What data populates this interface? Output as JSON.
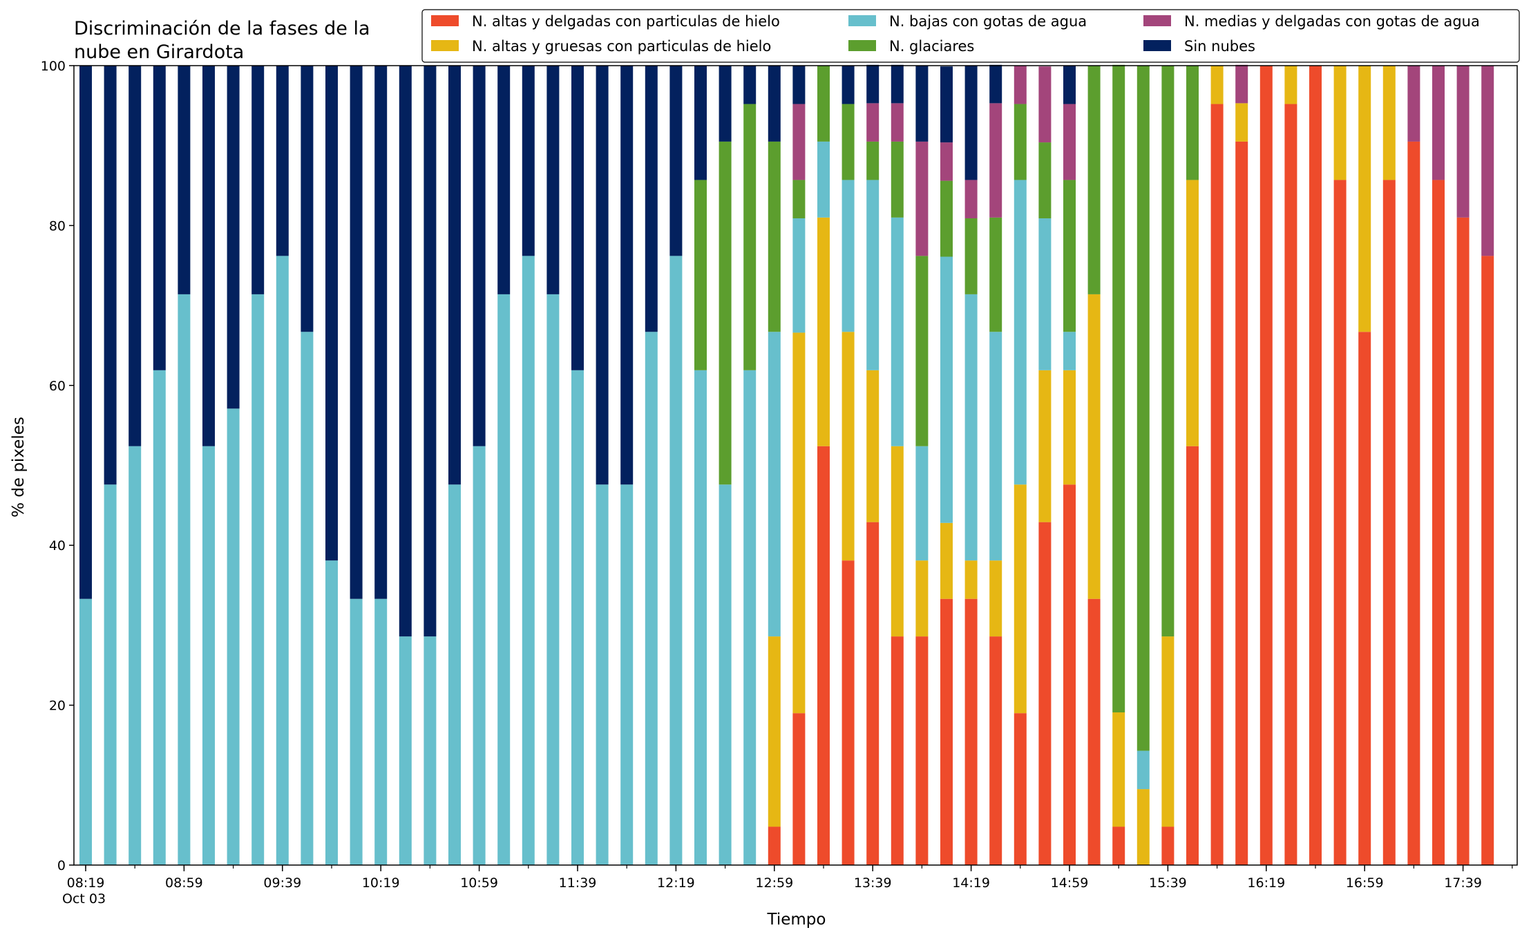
{
  "chart_data": {
    "type": "bar",
    "stacked": true,
    "title_lines": [
      "Discriminación de la fases de la",
      "nube en Girardota"
    ],
    "xlabel": "Tiempo",
    "ylabel": "% de pixeles",
    "ylim": [
      0,
      100
    ],
    "y_ticks": [
      "0",
      "20",
      "40",
      "60",
      "80",
      "100"
    ],
    "x_ticks": [
      {
        "index": 0,
        "lines": [
          "08:19",
          "Oct 03"
        ]
      },
      {
        "index": 4,
        "lines": [
          "08:59"
        ]
      },
      {
        "index": 8,
        "lines": [
          "09:39"
        ]
      },
      {
        "index": 12,
        "lines": [
          "10:19"
        ]
      },
      {
        "index": 16,
        "lines": [
          "10:59"
        ]
      },
      {
        "index": 20,
        "lines": [
          "11:39"
        ]
      },
      {
        "index": 24,
        "lines": [
          "12:19"
        ]
      },
      {
        "index": 28,
        "lines": [
          "12:59"
        ]
      },
      {
        "index": 32,
        "lines": [
          "13:39"
        ]
      },
      {
        "index": 36,
        "lines": [
          "14:19"
        ]
      },
      {
        "index": 40,
        "lines": [
          "14:59"
        ]
      },
      {
        "index": 44,
        "lines": [
          "15:39"
        ]
      },
      {
        "index": 48,
        "lines": [
          "16:19"
        ]
      },
      {
        "index": 52,
        "lines": [
          "16:59"
        ]
      },
      {
        "index": 56,
        "lines": [
          "17:39"
        ]
      }
    ],
    "legend_position": "top-right",
    "grid": false,
    "series": [
      {
        "name": "N. altas y delgadas con particulas de hielo",
        "color": "#ee4b2b",
        "values": [
          0,
          0,
          0,
          0,
          0,
          0,
          0,
          0,
          0,
          0,
          0,
          0,
          0,
          0,
          0,
          0,
          0,
          0,
          0,
          0,
          0,
          0,
          0,
          0,
          0,
          0,
          0,
          0,
          4.8,
          19.0,
          52.4,
          38.1,
          42.9,
          28.6,
          28.6,
          33.3,
          33.3,
          28.6,
          19.0,
          42.9,
          47.6,
          33.3,
          4.8,
          0,
          4.8,
          52.4,
          95.2,
          90.5,
          100,
          95.2,
          100,
          85.7,
          66.7,
          85.7,
          90.5,
          85.7,
          81.0,
          76.2
        ]
      },
      {
        "name": "N. altas y gruesas con particulas de hielo",
        "color": "#e6b714",
        "values": [
          0,
          0,
          0,
          0,
          0,
          0,
          0,
          0,
          0,
          0,
          0,
          0,
          0,
          0,
          0,
          0,
          0,
          0,
          0,
          0,
          0,
          0,
          0,
          0,
          0,
          0,
          0,
          0,
          23.8,
          47.6,
          28.6,
          28.6,
          19.0,
          23.8,
          9.5,
          9.5,
          4.8,
          9.5,
          28.6,
          19.0,
          14.3,
          38.1,
          14.3,
          9.5,
          23.8,
          33.3,
          4.8,
          4.8,
          0,
          4.8,
          0,
          14.3,
          33.3,
          14.3,
          0,
          0,
          0,
          0
        ]
      },
      {
        "name": "N. bajas con gotas de agua",
        "color": "#67bfcc",
        "values": [
          33.3,
          47.6,
          52.4,
          61.9,
          71.4,
          52.4,
          57.1,
          71.4,
          76.2,
          66.7,
          38.1,
          33.3,
          33.3,
          28.6,
          28.6,
          47.6,
          52.4,
          71.4,
          76.2,
          71.4,
          61.9,
          47.6,
          47.6,
          66.7,
          76.2,
          61.9,
          47.6,
          61.9,
          38.1,
          14.3,
          9.5,
          19.0,
          23.8,
          28.6,
          14.3,
          33.3,
          33.3,
          28.6,
          38.1,
          19.0,
          4.8,
          0,
          0,
          4.8,
          0,
          0,
          0,
          0,
          0,
          0,
          0,
          0,
          0,
          0,
          0,
          0,
          0,
          0
        ]
      },
      {
        "name": "N. glaciares",
        "color": "#5c9e2e",
        "values": [
          0,
          0,
          0,
          0,
          0,
          0,
          0,
          0,
          0,
          0,
          0,
          0,
          0,
          0,
          0,
          0,
          0,
          0,
          0,
          0,
          0,
          0,
          0,
          0,
          0,
          23.8,
          42.9,
          33.3,
          23.8,
          4.8,
          9.5,
          9.5,
          4.8,
          9.5,
          23.8,
          9.5,
          9.5,
          14.3,
          9.5,
          9.5,
          19.0,
          28.6,
          81.0,
          85.7,
          71.4,
          14.3,
          0,
          0,
          0,
          0,
          0,
          0,
          0,
          0,
          0,
          0,
          0,
          0
        ]
      },
      {
        "name": "N. medias y delgadas con gotas de agua",
        "color": "#a3457b",
        "values": [
          0,
          0,
          0,
          0,
          0,
          0,
          0,
          0,
          0,
          0,
          0,
          0,
          0,
          0,
          0,
          0,
          0,
          0,
          0,
          0,
          0,
          0,
          0,
          0,
          0,
          0,
          0,
          0,
          0,
          9.5,
          0,
          0,
          4.8,
          4.8,
          14.3,
          4.8,
          4.8,
          14.3,
          4.8,
          9.5,
          9.5,
          0,
          0,
          0,
          0,
          0,
          0,
          4.8,
          0,
          0,
          0,
          0,
          0,
          0,
          9.5,
          14.3,
          19.0,
          23.8
        ]
      },
      {
        "name": "Sin nubes",
        "color": "#03215e",
        "values": [
          66.7,
          52.4,
          47.6,
          38.1,
          28.6,
          47.6,
          42.9,
          28.6,
          23.8,
          33.3,
          61.9,
          66.7,
          66.7,
          71.4,
          71.4,
          52.4,
          47.6,
          28.6,
          23.8,
          28.6,
          38.1,
          52.4,
          52.4,
          33.3,
          23.8,
          14.3,
          9.5,
          4.8,
          9.5,
          4.8,
          0,
          4.8,
          4.8,
          4.8,
          9.5,
          9.5,
          14.3,
          4.8,
          0,
          0,
          4.8,
          0,
          0,
          0,
          0,
          0,
          0,
          0,
          0,
          0,
          0,
          0,
          0,
          0,
          0,
          0,
          0,
          0
        ]
      }
    ]
  }
}
